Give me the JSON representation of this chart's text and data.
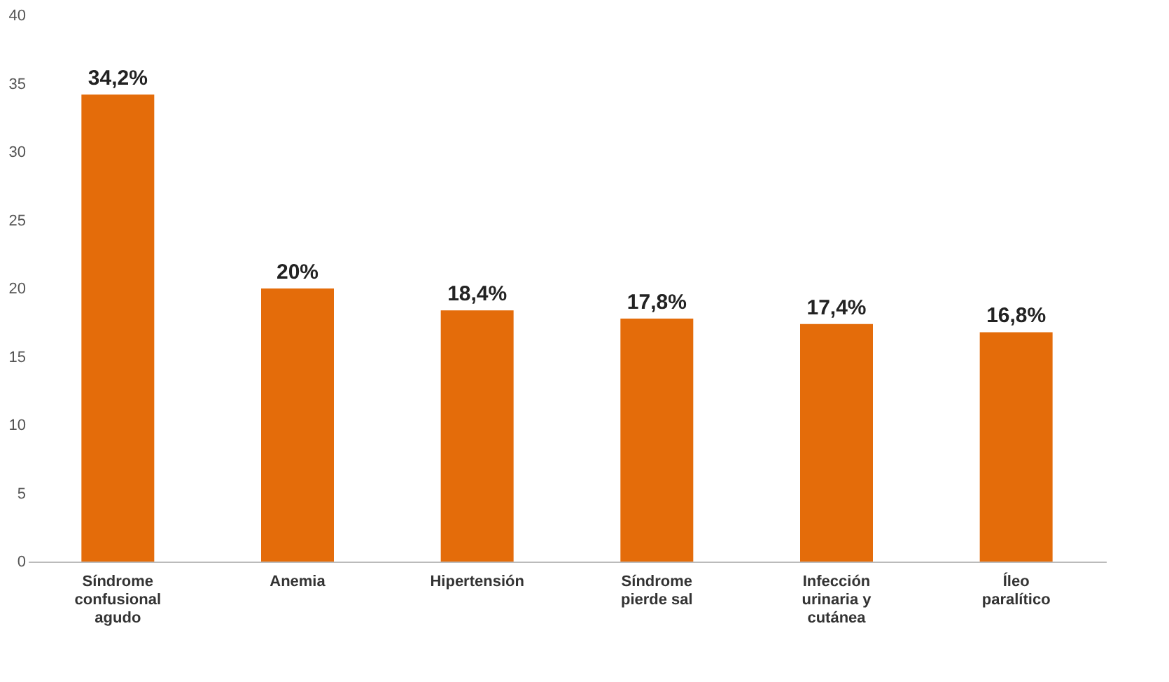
{
  "chart_data": {
    "type": "bar",
    "categories": [
      "Síndrome confusional agudo",
      "Anemia",
      "Hipertensión",
      "Síndrome pierde sal",
      "Infección urinaria y cutánea",
      "Íleo paralítico"
    ],
    "values": [
      34.2,
      20,
      18.4,
      17.8,
      17.4,
      16.8
    ],
    "value_labels": [
      "34,2%",
      "20%",
      "18,4%",
      "17,8%",
      "17,4%",
      "16,8%"
    ],
    "color": "#e46c0a",
    "ylim": [
      0,
      40
    ],
    "yticks": [
      0,
      5,
      10,
      15,
      20,
      25,
      30,
      35,
      40
    ],
    "grid": false
  }
}
